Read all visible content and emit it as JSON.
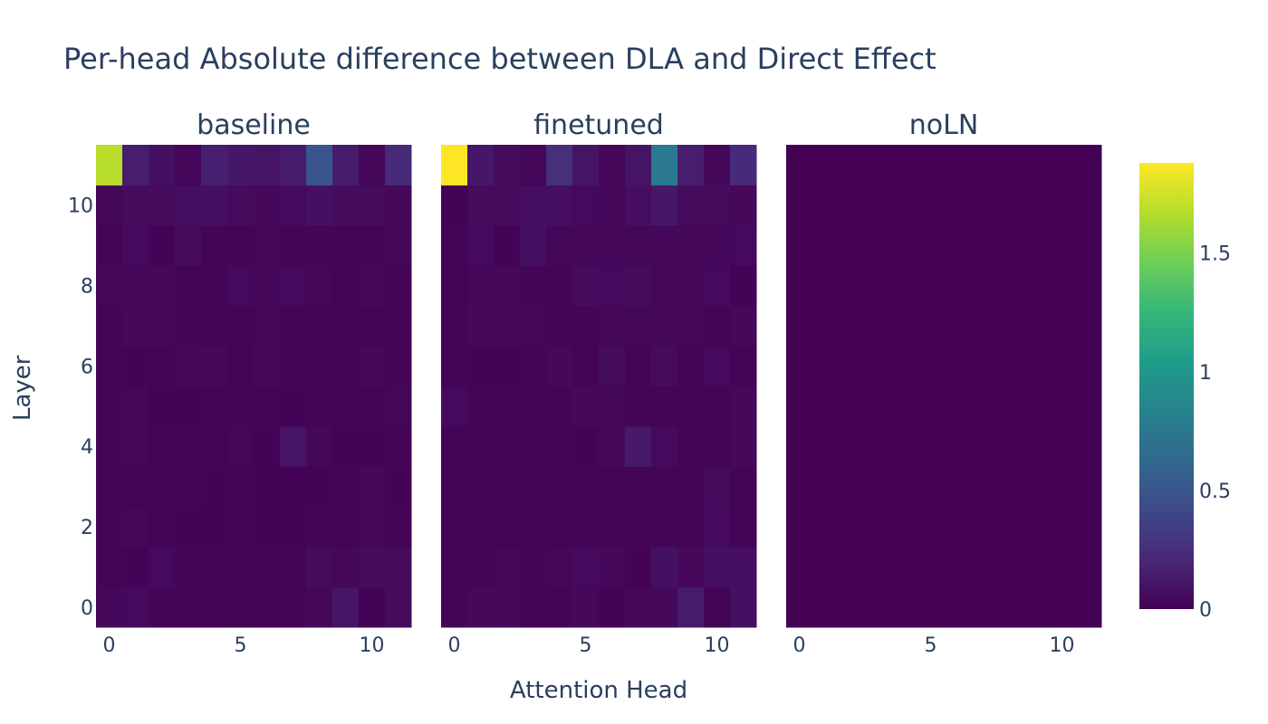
{
  "chart_data": {
    "type": "heatmap",
    "title": "Per-head Absolute difference between DLA and Direct Effect",
    "xlabel": "Attention Head",
    "ylabel": "Layer",
    "x_ticks": [
      "0",
      "5",
      "10"
    ],
    "y_ticks": [
      "0",
      "2",
      "4",
      "6",
      "8",
      "10"
    ],
    "colorscale": "viridis",
    "zlim": [
      0,
      1.88
    ],
    "colorbar_ticks": [
      "0",
      "0.5",
      "1",
      "1.5"
    ],
    "panels": [
      {
        "name": "baseline",
        "z": [
          [
            0.03,
            0.05,
            0.02,
            0.02,
            0.02,
            0.02,
            0.02,
            0.02,
            0.03,
            0.1,
            0.01,
            0.06
          ],
          [
            0.02,
            0.01,
            0.05,
            0.02,
            0.02,
            0.02,
            0.02,
            0.02,
            0.06,
            0.03,
            0.06,
            0.06
          ],
          [
            0.02,
            0.03,
            0.02,
            0.01,
            0.01,
            0.02,
            0.01,
            0.01,
            0.02,
            0.02,
            0.04,
            0.02
          ],
          [
            0.02,
            0.02,
            0.02,
            0.02,
            0.01,
            0.02,
            0.01,
            0.01,
            0.01,
            0.02,
            0.04,
            0.01
          ],
          [
            0.02,
            0.03,
            0.02,
            0.02,
            0.02,
            0.03,
            0.01,
            0.1,
            0.04,
            0.01,
            0.01,
            0.02
          ],
          [
            0.02,
            0.03,
            0.01,
            0.01,
            0.02,
            0.02,
            0.02,
            0.01,
            0.02,
            0.02,
            0.02,
            0.03
          ],
          [
            0.02,
            0.01,
            0.02,
            0.03,
            0.04,
            0.02,
            0.04,
            0.02,
            0.02,
            0.02,
            0.04,
            0.02
          ],
          [
            0.02,
            0.04,
            0.04,
            0.02,
            0.02,
            0.02,
            0.03,
            0.02,
            0.02,
            0.02,
            0.02,
            0.02
          ],
          [
            0.03,
            0.03,
            0.04,
            0.02,
            0.02,
            0.05,
            0.03,
            0.05,
            0.03,
            0.02,
            0.04,
            0.02
          ],
          [
            0.02,
            0.05,
            0.01,
            0.06,
            0.02,
            0.02,
            0.03,
            0.02,
            0.02,
            0.02,
            0.02,
            0.04
          ],
          [
            0.03,
            0.06,
            0.06,
            0.07,
            0.07,
            0.06,
            0.04,
            0.05,
            0.08,
            0.06,
            0.06,
            0.04
          ],
          [
            1.68,
            0.15,
            0.08,
            0.03,
            0.16,
            0.12,
            0.1,
            0.14,
            0.5,
            0.14,
            0.03,
            0.22
          ]
        ]
      },
      {
        "name": "finetuned",
        "z": [
          [
            0.02,
            0.04,
            0.03,
            0.02,
            0.02,
            0.04,
            0.01,
            0.04,
            0.04,
            0.14,
            0.02,
            0.08
          ],
          [
            0.02,
            0.02,
            0.03,
            0.02,
            0.03,
            0.05,
            0.04,
            0.01,
            0.08,
            0.04,
            0.08,
            0.07
          ],
          [
            0.02,
            0.02,
            0.02,
            0.02,
            0.02,
            0.02,
            0.02,
            0.02,
            0.02,
            0.02,
            0.05,
            0.02
          ],
          [
            0.02,
            0.02,
            0.02,
            0.02,
            0.02,
            0.02,
            0.02,
            0.02,
            0.02,
            0.02,
            0.06,
            0.02
          ],
          [
            0.02,
            0.02,
            0.02,
            0.02,
            0.02,
            0.01,
            0.04,
            0.13,
            0.05,
            0.02,
            0.02,
            0.04
          ],
          [
            0.05,
            0.02,
            0.02,
            0.02,
            0.02,
            0.04,
            0.04,
            0.02,
            0.02,
            0.02,
            0.02,
            0.04
          ],
          [
            0.02,
            0.01,
            0.01,
            0.02,
            0.04,
            0.02,
            0.06,
            0.02,
            0.06,
            0.02,
            0.05,
            0.02
          ],
          [
            0.02,
            0.04,
            0.04,
            0.03,
            0.02,
            0.02,
            0.03,
            0.03,
            0.03,
            0.03,
            0.02,
            0.04
          ],
          [
            0.02,
            0.03,
            0.04,
            0.02,
            0.02,
            0.06,
            0.05,
            0.06,
            0.03,
            0.03,
            0.05,
            0.01
          ],
          [
            0.02,
            0.05,
            0.01,
            0.08,
            0.03,
            0.03,
            0.03,
            0.03,
            0.03,
            0.03,
            0.03,
            0.05
          ],
          [
            0.01,
            0.06,
            0.06,
            0.07,
            0.07,
            0.05,
            0.03,
            0.07,
            0.12,
            0.06,
            0.06,
            0.04
          ],
          [
            1.88,
            0.12,
            0.06,
            0.03,
            0.25,
            0.1,
            0.04,
            0.1,
            0.76,
            0.15,
            0.04,
            0.22
          ]
        ]
      },
      {
        "name": "noLN",
        "z": [
          [
            0,
            0,
            0,
            0,
            0,
            0,
            0,
            0,
            0,
            0,
            0,
            0
          ],
          [
            0,
            0,
            0,
            0,
            0,
            0,
            0,
            0,
            0,
            0,
            0,
            0
          ],
          [
            0,
            0,
            0,
            0,
            0,
            0,
            0,
            0,
            0,
            0,
            0,
            0
          ],
          [
            0,
            0,
            0,
            0,
            0,
            0,
            0,
            0,
            0,
            0,
            0,
            0
          ],
          [
            0,
            0,
            0,
            0,
            0,
            0,
            0,
            0,
            0,
            0,
            0,
            0
          ],
          [
            0,
            0,
            0,
            0,
            0,
            0,
            0,
            0,
            0,
            0,
            0,
            0
          ],
          [
            0,
            0,
            0,
            0,
            0,
            0,
            0,
            0,
            0,
            0,
            0,
            0
          ],
          [
            0,
            0,
            0,
            0,
            0,
            0,
            0,
            0,
            0,
            0,
            0,
            0
          ],
          [
            0,
            0,
            0,
            0,
            0,
            0,
            0,
            0,
            0,
            0,
            0,
            0
          ],
          [
            0,
            0,
            0,
            0,
            0,
            0,
            0,
            0,
            0,
            0,
            0,
            0
          ],
          [
            0,
            0,
            0,
            0,
            0,
            0,
            0,
            0,
            0,
            0,
            0,
            0
          ],
          [
            0,
            0,
            0,
            0,
            0,
            0,
            0,
            0,
            0,
            0,
            0,
            0
          ]
        ]
      }
    ]
  }
}
